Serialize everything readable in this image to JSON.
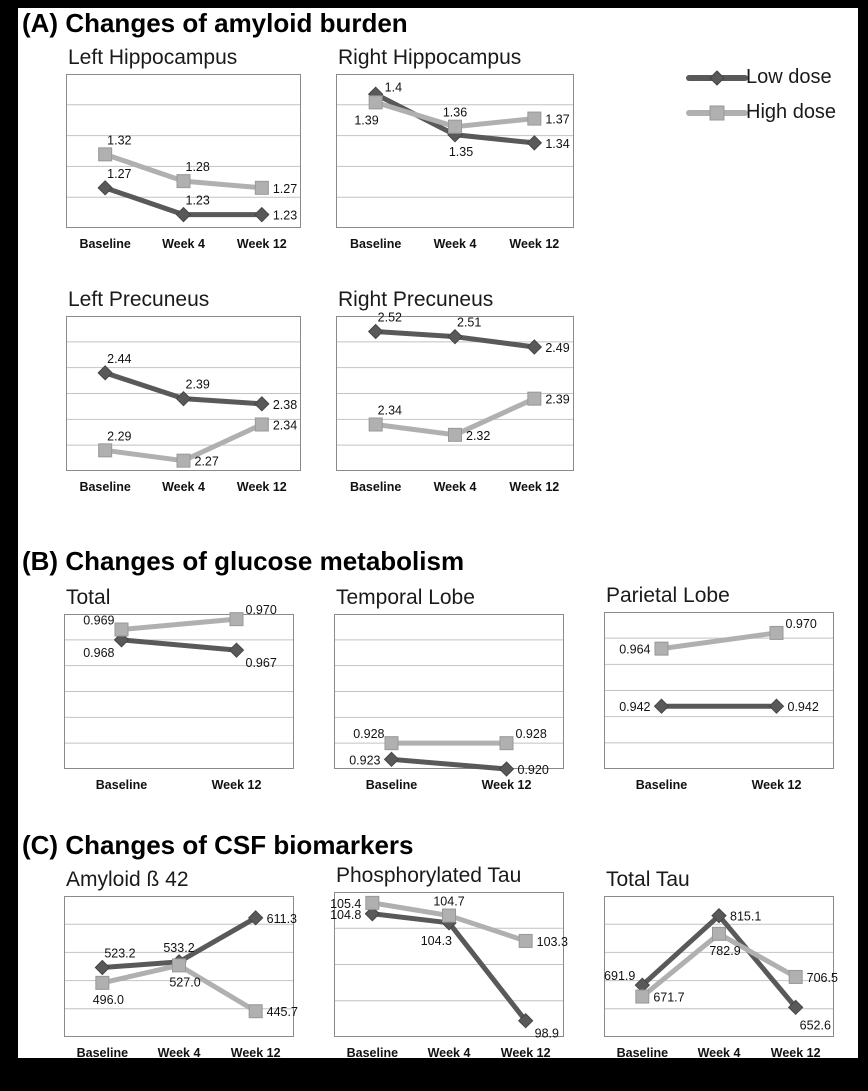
{
  "colors": {
    "low": "#595959",
    "high": "#b0b0b0",
    "low_edge": "#454545",
    "high_edge": "#989898",
    "grid": "#c2c2c2",
    "plot_border": "#8a8a8a",
    "text": "#111111"
  },
  "sections": [
    {
      "label": "(A) Changes of amyloid burden"
    },
    {
      "label": "(B) Changes of glucose metabolism"
    },
    {
      "label": "(C) Changes of CSF biomarkers"
    }
  ],
  "legend": {
    "position": "top-right",
    "items": [
      {
        "label": "Low dose",
        "marker": "diamond"
      },
      {
        "label": "High dose",
        "marker": "square"
      }
    ]
  },
  "chart_data": [
    {
      "id": "left-hippocampus",
      "title": "Left Hippocampus",
      "type": "line",
      "categories": [
        "Baseline",
        "Week 4",
        "Week 12"
      ],
      "ylim": [
        1.21,
        1.44
      ],
      "gridline_divisions": 5,
      "grid": true,
      "series": [
        {
          "name": "Low dose",
          "key": "low",
          "marker": "diamond",
          "values": [
            1.27,
            1.23,
            1.23
          ],
          "labels": [
            {
              "text": "1.27",
              "pos": "above"
            },
            {
              "text": "1.23",
              "pos": "above"
            },
            {
              "text": "1.23",
              "pos": "right"
            }
          ]
        },
        {
          "name": "High dose",
          "key": "high",
          "marker": "square",
          "values": [
            1.32,
            1.28,
            1.27
          ],
          "labels": [
            {
              "text": "1.32",
              "pos": "above"
            },
            {
              "text": "1.28",
              "pos": "above"
            },
            {
              "text": "1.27",
              "pos": "right"
            }
          ]
        }
      ]
    },
    {
      "id": "right-hippocampus",
      "title": "Right Hippocampus",
      "type": "line",
      "categories": [
        "Baseline",
        "Week 4",
        "Week 12"
      ],
      "ylim": [
        1.235,
        1.425
      ],
      "gridline_divisions": 5,
      "grid": true,
      "series": [
        {
          "name": "Low dose",
          "key": "low",
          "marker": "diamond",
          "values": [
            1.4,
            1.35,
            1.34
          ],
          "labels": [
            {
              "text": "1.4",
              "pos": "above-right"
            },
            {
              "text": "1.35",
              "pos": "below"
            },
            {
              "text": "1.34",
              "pos": "right"
            }
          ]
        },
        {
          "name": "High dose",
          "key": "high",
          "marker": "square",
          "values": [
            1.39,
            1.36,
            1.37
          ],
          "labels": [
            {
              "text": "1.39",
              "pos": "below-left"
            },
            {
              "text": "1.36",
              "pos": "above-center"
            },
            {
              "text": "1.37",
              "pos": "right"
            }
          ]
        }
      ]
    },
    {
      "id": "left-precuneus",
      "title": "Left Precuneus",
      "type": "line",
      "categories": [
        "Baseline",
        "Week 4",
        "Week 12"
      ],
      "ylim": [
        2.25,
        2.55
      ],
      "gridline_divisions": 6,
      "grid": true,
      "series": [
        {
          "name": "Low dose",
          "key": "low",
          "marker": "diamond",
          "values": [
            2.44,
            2.39,
            2.38
          ],
          "labels": [
            {
              "text": "2.44",
              "pos": "above"
            },
            {
              "text": "2.39",
              "pos": "above"
            },
            {
              "text": "2.38",
              "pos": "right"
            }
          ]
        },
        {
          "name": "High dose",
          "key": "high",
          "marker": "square",
          "values": [
            2.29,
            2.27,
            2.34
          ],
          "labels": [
            {
              "text": "2.29",
              "pos": "above"
            },
            {
              "text": "2.27",
              "pos": "right"
            },
            {
              "text": "2.34",
              "pos": "right"
            }
          ]
        }
      ]
    },
    {
      "id": "right-precuneus",
      "title": "Right Precuneus",
      "type": "line",
      "categories": [
        "Baseline",
        "Week 4",
        "Week 12"
      ],
      "ylim": [
        2.25,
        2.55
      ],
      "gridline_divisions": 6,
      "grid": true,
      "series": [
        {
          "name": "Low dose",
          "key": "low",
          "marker": "diamond",
          "values": [
            2.52,
            2.51,
            2.49
          ],
          "labels": [
            {
              "text": "2.52",
              "pos": "above"
            },
            {
              "text": "2.51",
              "pos": "above"
            },
            {
              "text": "2.49",
              "pos": "right"
            }
          ]
        },
        {
          "name": "High dose",
          "key": "high",
          "marker": "square",
          "values": [
            2.34,
            2.32,
            2.39
          ],
          "labels": [
            {
              "text": "2.34",
              "pos": "above"
            },
            {
              "text": "2.32",
              "pos": "right"
            },
            {
              "text": "2.39",
              "pos": "right"
            }
          ]
        }
      ]
    },
    {
      "id": "total",
      "title": "Total",
      "type": "line",
      "categories": [
        "Baseline",
        "Week 12"
      ],
      "ylim": [
        0.9555,
        0.9705
      ],
      "gridline_divisions": 6,
      "grid": true,
      "series": [
        {
          "name": "Low dose",
          "key": "low",
          "marker": "diamond",
          "values": [
            0.968,
            0.967
          ],
          "labels": [
            {
              "text": "0.968",
              "pos": "left-below"
            },
            {
              "text": "0.967",
              "pos": "right-below"
            }
          ]
        },
        {
          "name": "High dose",
          "key": "high",
          "marker": "square",
          "values": [
            0.969,
            0.97
          ],
          "labels": [
            {
              "text": "0.969",
              "pos": "left-above"
            },
            {
              "text": "0.970",
              "pos": "right-above"
            }
          ]
        }
      ]
    },
    {
      "id": "temporal-lobe",
      "title": "Temporal Lobe",
      "type": "line",
      "categories": [
        "Baseline",
        "Week 12"
      ],
      "ylim": [
        0.92,
        0.968
      ],
      "gridline_divisions": 6,
      "grid": true,
      "series": [
        {
          "name": "Low dose",
          "key": "low",
          "marker": "diamond",
          "values": [
            0.923,
            0.92
          ],
          "labels": [
            {
              "text": "0.923",
              "pos": "left"
            },
            {
              "text": "0.920",
              "pos": "right"
            }
          ]
        },
        {
          "name": "High dose",
          "key": "high",
          "marker": "square",
          "values": [
            0.928,
            0.928
          ],
          "labels": [
            {
              "text": "0.928",
              "pos": "left-above"
            },
            {
              "text": "0.928",
              "pos": "right-above"
            }
          ]
        }
      ]
    },
    {
      "id": "parietal-lobe",
      "title": "Parietal Lobe",
      "type": "line",
      "categories": [
        "Baseline",
        "Week 12"
      ],
      "ylim": [
        0.918,
        0.978
      ],
      "gridline_divisions": 6,
      "grid": true,
      "series": [
        {
          "name": "Low dose",
          "key": "low",
          "marker": "diamond",
          "values": [
            0.942,
            0.942
          ],
          "labels": [
            {
              "text": "0.942",
              "pos": "left"
            },
            {
              "text": "0.942",
              "pos": "right"
            }
          ]
        },
        {
          "name": "High dose",
          "key": "high",
          "marker": "square",
          "values": [
            0.964,
            0.97
          ],
          "labels": [
            {
              "text": "0.964",
              "pos": "left"
            },
            {
              "text": "0.970",
              "pos": "right-above"
            }
          ]
        }
      ]
    },
    {
      "id": "amyloid-beta-42",
      "title": "Amyloid ß 42",
      "type": "line",
      "categories": [
        "Baseline",
        "Week 4",
        "Week 12"
      ],
      "ylim": [
        400,
        650
      ],
      "gridline_divisions": 5,
      "grid": true,
      "series": [
        {
          "name": "Low dose",
          "key": "low",
          "marker": "diamond",
          "values": [
            523.2,
            533.2,
            611.3
          ],
          "labels": [
            {
              "text": "523.2",
              "pos": "above"
            },
            {
              "text": "533.2",
              "pos": "above-center"
            },
            {
              "text": "611.3",
              "pos": "right"
            }
          ]
        },
        {
          "name": "High dose",
          "key": "high",
          "marker": "square",
          "values": [
            496.0,
            527.0,
            445.7
          ],
          "labels": [
            {
              "text": "496.0",
              "pos": "below"
            },
            {
              "text": "527.0",
              "pos": "below"
            },
            {
              "text": "445.7",
              "pos": "right"
            }
          ]
        }
      ]
    },
    {
      "id": "phosphorylated-tau",
      "title": "Phosphorylated Tau",
      "type": "line",
      "categories": [
        "Baseline",
        "Week 4",
        "Week 12"
      ],
      "ylim": [
        98,
        106
      ],
      "gridline_divisions": 4,
      "grid": true,
      "series": [
        {
          "name": "Low dose",
          "key": "low",
          "marker": "diamond",
          "values": [
            104.8,
            104.3,
            98.9
          ],
          "labels": [
            {
              "text": "104.8",
              "pos": "left"
            },
            {
              "text": "104.3",
              "pos": "below-left"
            },
            {
              "text": "98.9",
              "pos": "right-below"
            }
          ]
        },
        {
          "name": "High dose",
          "key": "high",
          "marker": "square",
          "values": [
            105.4,
            104.7,
            103.3
          ],
          "labels": [
            {
              "text": "105.4",
              "pos": "left"
            },
            {
              "text": "104.7",
              "pos": "above-center"
            },
            {
              "text": "103.3",
              "pos": "right"
            }
          ]
        }
      ]
    },
    {
      "id": "total-tau",
      "title": "Total Tau",
      "type": "line",
      "categories": [
        "Baseline",
        "Week 4",
        "Week 12"
      ],
      "ylim": [
        600,
        850
      ],
      "gridline_divisions": 5,
      "grid": true,
      "series": [
        {
          "name": "Low dose",
          "key": "low",
          "marker": "diamond",
          "values": [
            691.9,
            815.1,
            652.6
          ],
          "labels": [
            {
              "text": "691.9",
              "pos": "left-above"
            },
            {
              "text": "815.1",
              "pos": "right"
            },
            {
              "text": "652.6",
              "pos": "below-right"
            }
          ]
        },
        {
          "name": "High dose",
          "key": "high",
          "marker": "square",
          "values": [
            671.7,
            782.9,
            706.5
          ],
          "labels": [
            {
              "text": "671.7",
              "pos": "right"
            },
            {
              "text": "782.9",
              "pos": "below"
            },
            {
              "text": "706.5",
              "pos": "right"
            }
          ]
        }
      ]
    }
  ]
}
